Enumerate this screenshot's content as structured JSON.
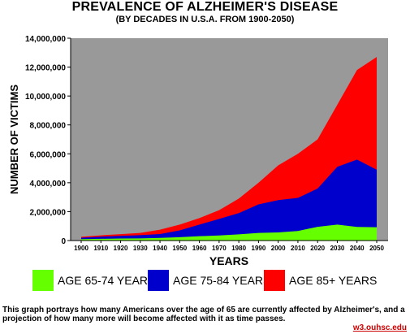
{
  "chart_data": {
    "type": "area",
    "stacked": true,
    "title": "PREVALENCE OF ALZHEIMER'S DISEASE",
    "subtitle": "(BY DECADES IN U.S.A. FROM 1900-2050)",
    "xlabel": "YEARS",
    "ylabel": "NUMBER OF VICTIMS",
    "x": [
      1900,
      1910,
      1920,
      1930,
      1940,
      1950,
      1960,
      1970,
      1980,
      1990,
      2000,
      2010,
      2020,
      2030,
      2040,
      2050
    ],
    "x_tick_labels": [
      "1900",
      "1910",
      "1920",
      "1930",
      "1940",
      "1950",
      "1960",
      "1970",
      "1980",
      "1990",
      "2000",
      "2010",
      "2020",
      "2030",
      "2040",
      "2050"
    ],
    "ylim": [
      0,
      14000000
    ],
    "y_ticks": [
      0,
      2000000,
      4000000,
      6000000,
      8000000,
      10000000,
      12000000,
      14000000
    ],
    "y_tick_labels": [
      "0",
      "2,000,000",
      "4,000,000",
      "6,000,000",
      "8,000,000",
      "10,000,000",
      "12,000,000",
      "14,000,000"
    ],
    "grid": false,
    "background": "#999999",
    "legend_position": "bottom",
    "series": [
      {
        "name": "AGE 65-74 YEARS",
        "color": "#66ff00",
        "values": [
          100000,
          120000,
          140000,
          150000,
          180000,
          230000,
          300000,
          350000,
          430000,
          530000,
          560000,
          660000,
          950000,
          1100000,
          940000,
          920000
        ]
      },
      {
        "name": "AGE 75-84 YEARS",
        "color": "#0000cc",
        "values": [
          100000,
          150000,
          180000,
          220000,
          270000,
          470000,
          800000,
          1150000,
          1470000,
          1970000,
          2240000,
          2290000,
          2650000,
          4000000,
          4660000,
          3980000
        ]
      },
      {
        "name": "AGE 85+ YEARS",
        "color": "#ff0000",
        "values": [
          60000,
          90000,
          120000,
          160000,
          300000,
          400000,
          450000,
          600000,
          1000000,
          1500000,
          2400000,
          3050000,
          3400000,
          4300000,
          6200000,
          7800000
        ]
      }
    ]
  },
  "caption": "This graph portrays how many Americans over the age of 65 are currently affected by Alzheimer's, and a projection of how many more will become affected with it as time passes.",
  "source_link": "w3.ouhsc.edu"
}
